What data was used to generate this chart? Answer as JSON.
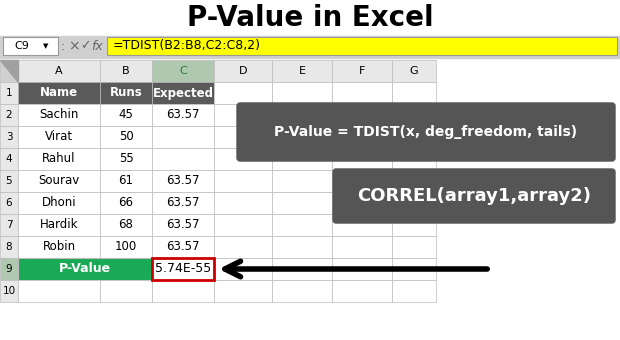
{
  "title": "P-Value in Excel",
  "title_fontsize": 20,
  "title_fontweight": "bold",
  "bg_color": "#ffffff",
  "cell_ref": "C9",
  "formula_bar_text": "=TDIST(B2:B8,C2:C8,2)",
  "col_headers": [
    "A",
    "B",
    "C",
    "D",
    "E",
    "F",
    "G"
  ],
  "header_bg": "#5a5a5a",
  "header_fg": "#ffffff",
  "row1_names": [
    "Name",
    "Runs",
    "Expected"
  ],
  "names": [
    "Sachin",
    "Virat",
    "Rahul",
    "Sourav",
    "Dhoni",
    "Hardik",
    "Robin"
  ],
  "runs": [
    "45",
    "50",
    "55",
    "61",
    "66",
    "68",
    "100"
  ],
  "expected_visible": [
    "63.57",
    "",
    "",
    "63.57",
    "63.57",
    "63.57",
    "63.57"
  ],
  "pvalue_label": "P-Value",
  "pvalue_result": "5.74E-55",
  "pvalue_row_bg": "#1aaa55",
  "tooltip1_text": "P-Value = TDIST(x, deg_freedom, tails)",
  "tooltip2_text": "CORREL(array1,array2)",
  "tooltip_bg": "#555555",
  "tooltip_fg": "#ffffff",
  "formula_bg": "#ffff00",
  "grid_color": "#bbbbbb",
  "sheet_bg": "#e8e8e8",
  "cell_bg": "#ffffff",
  "corner_bg": "#d0d0d0"
}
